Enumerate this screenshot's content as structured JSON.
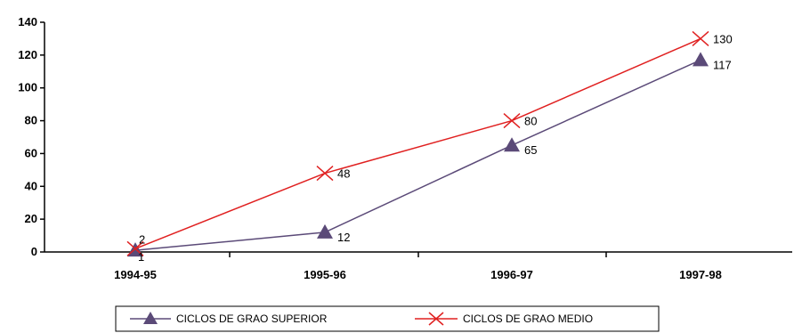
{
  "chart_data": {
    "type": "line",
    "title": "",
    "xlabel": "",
    "ylabel": "",
    "categories": [
      "1994-95",
      "1995-96",
      "1996-97",
      "1997-98"
    ],
    "ylim": [
      0,
      140
    ],
    "yticks": [
      0,
      20,
      40,
      60,
      80,
      100,
      120,
      140
    ],
    "series": [
      {
        "name": "CICLOS DE GRAO SUPERIOR",
        "values": [
          1,
          12,
          65,
          117
        ],
        "labels": [
          "1",
          "12",
          "65",
          "117"
        ],
        "color": "#5b4a78",
        "marker": "triangle"
      },
      {
        "name": "CICLOS DE GRAO MEDIO",
        "values": [
          2,
          48,
          80,
          130
        ],
        "labels": [
          "2",
          "48",
          "80",
          "130"
        ],
        "color": "#e02020",
        "marker": "x"
      }
    ],
    "grid": false,
    "legend": "bottom"
  }
}
